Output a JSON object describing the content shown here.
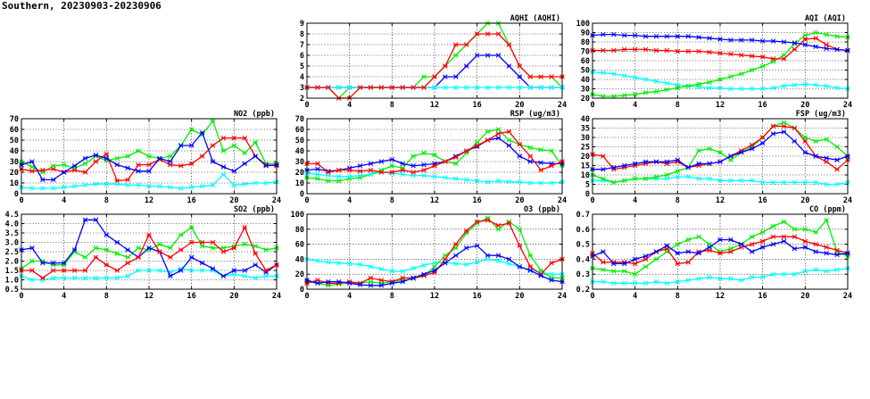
{
  "title": "Southern, 20230903-20230906",
  "colors": {
    "red": "#ff0000",
    "green": "#00ee00",
    "blue": "#0000ff",
    "cyan": "#00ffff"
  },
  "chart_data": [
    {
      "id": "aqhi",
      "type": "line",
      "title": "AQHI (AQHI)",
      "xlim": [
        0,
        24
      ],
      "xticks": [
        0,
        4,
        8,
        12,
        16,
        20,
        24
      ],
      "ylim": [
        2,
        9
      ],
      "yticks": [
        2,
        3,
        4,
        5,
        6,
        7,
        8,
        9
      ],
      "grid": true,
      "series": [
        {
          "color": "green",
          "values": [
            3,
            3,
            3,
            2,
            3,
            3,
            3,
            3,
            3,
            3,
            3,
            4,
            4,
            5,
            6,
            7,
            8,
            9,
            9,
            7,
            5,
            4,
            4,
            4,
            3
          ]
        },
        {
          "color": "blue",
          "values": [
            3,
            3,
            3,
            3,
            3,
            3,
            3,
            3,
            3,
            3,
            3,
            3,
            3,
            4,
            4,
            5,
            6,
            6,
            6,
            5,
            4,
            3,
            3,
            3,
            3
          ]
        },
        {
          "color": "cyan",
          "values": [
            3,
            3,
            3,
            3,
            3,
            3,
            3,
            3,
            3,
            3,
            3,
            3,
            3,
            3,
            3,
            3,
            3,
            3,
            3,
            3,
            3,
            3,
            3,
            3,
            3
          ]
        },
        {
          "color": "red",
          "values": [
            3,
            3,
            3,
            2,
            2,
            3,
            3,
            3,
            3,
            3,
            3,
            3,
            4,
            5,
            7,
            7,
            8,
            8,
            8,
            7,
            5,
            4,
            4,
            4,
            4
          ]
        }
      ]
    },
    {
      "id": "aqi",
      "type": "line",
      "title": "AQI (AQI)",
      "xlim": [
        0,
        24
      ],
      "xticks": [
        0,
        4,
        8,
        12,
        16,
        20,
        24
      ],
      "ylim": [
        20,
        100
      ],
      "yticks": [
        20,
        30,
        40,
        50,
        60,
        70,
        80,
        90,
        100
      ],
      "grid": true,
      "series": [
        {
          "color": "cyan",
          "values": [
            48,
            47,
            46,
            44,
            42,
            40,
            38,
            36,
            34,
            33,
            32,
            31,
            31,
            30,
            30,
            30,
            30,
            31,
            33,
            34,
            35,
            34,
            33,
            31,
            30
          ]
        },
        {
          "color": "green",
          "values": [
            24,
            22,
            22,
            23,
            24,
            26,
            27,
            29,
            31,
            33,
            35,
            37,
            40,
            43,
            46,
            50,
            54,
            59,
            66,
            78,
            87,
            90,
            88,
            86,
            85
          ]
        },
        {
          "color": "red",
          "values": [
            71,
            71,
            71,
            72,
            72,
            72,
            71,
            71,
            70,
            70,
            70,
            69,
            68,
            67,
            66,
            65,
            64,
            62,
            62,
            72,
            83,
            84,
            77,
            72,
            71
          ]
        },
        {
          "color": "blue",
          "values": [
            87,
            88,
            88,
            87,
            87,
            86,
            86,
            86,
            86,
            86,
            85,
            84,
            83,
            82,
            82,
            82,
            81,
            81,
            80,
            79,
            77,
            75,
            73,
            72,
            71
          ]
        }
      ]
    },
    {
      "id": "no2",
      "type": "line",
      "title": "NO2 (ppb)",
      "xlim": [
        0,
        24
      ],
      "xticks": [
        0,
        4,
        8,
        12,
        16,
        20,
        24
      ],
      "ylim": [
        0,
        70
      ],
      "yticks": [
        0,
        10,
        20,
        30,
        40,
        50,
        60,
        70
      ],
      "grid": true,
      "series": [
        {
          "color": "green",
          "values": [
            30,
            25,
            20,
            26,
            27,
            24,
            28,
            35,
            31,
            33,
            35,
            40,
            35,
            33,
            35,
            45,
            60,
            55,
            68,
            40,
            45,
            38,
            48,
            28,
            28
          ]
        },
        {
          "color": "red",
          "values": [
            23,
            21,
            22,
            23,
            20,
            22,
            20,
            30,
            37,
            12,
            13,
            27,
            27,
            32,
            27,
            26,
            28,
            35,
            45,
            52,
            52,
            52,
            35,
            27,
            26
          ]
        },
        {
          "color": "blue",
          "values": [
            27,
            30,
            13,
            13,
            20,
            26,
            33,
            36,
            33,
            27,
            24,
            21,
            21,
            33,
            30,
            45,
            45,
            57,
            30,
            25,
            21,
            28,
            35,
            26,
            27
          ]
        },
        {
          "color": "cyan",
          "values": [
            6,
            5,
            5,
            5,
            6,
            7,
            8,
            9,
            9,
            9,
            8,
            8,
            7,
            7,
            6,
            5,
            6,
            7,
            8,
            18,
            8,
            9,
            10,
            10,
            11
          ]
        }
      ]
    },
    {
      "id": "rsp",
      "type": "line",
      "title": "RSP (ug/m3)",
      "xlim": [
        0,
        24
      ],
      "xticks": [
        0,
        4,
        8,
        12,
        16,
        20,
        24
      ],
      "ylim": [
        0,
        70
      ],
      "yticks": [
        0,
        10,
        20,
        30,
        40,
        50,
        60,
        70
      ],
      "grid": true,
      "series": [
        {
          "color": "green",
          "values": [
            15,
            14,
            12,
            12,
            14,
            15,
            18,
            22,
            26,
            24,
            35,
            38,
            36,
            30,
            28,
            38,
            48,
            58,
            60,
            50,
            46,
            43,
            41,
            40,
            26
          ]
        },
        {
          "color": "blue",
          "values": [
            22,
            23,
            21,
            22,
            24,
            26,
            28,
            30,
            32,
            28,
            26,
            27,
            28,
            30,
            35,
            40,
            44,
            50,
            52,
            45,
            35,
            30,
            29,
            28,
            28
          ]
        },
        {
          "color": "cyan",
          "values": [
            19,
            18,
            17,
            16,
            16,
            17,
            18,
            20,
            19,
            18,
            17,
            17,
            16,
            15,
            14,
            13,
            12,
            11,
            12,
            11,
            11,
            10,
            10,
            10,
            11
          ]
        },
        {
          "color": "red",
          "values": [
            28,
            28,
            20,
            22,
            22,
            21,
            22,
            20,
            20,
            22,
            20,
            22,
            26,
            30,
            34,
            40,
            45,
            50,
            56,
            58,
            46,
            35,
            22,
            26,
            30
          ]
        }
      ]
    },
    {
      "id": "fsp",
      "type": "line",
      "title": "FSP (ug/m3)",
      "xlim": [
        0,
        24
      ],
      "xticks": [
        0,
        4,
        8,
        12,
        16,
        20,
        24
      ],
      "ylim": [
        0,
        40
      ],
      "yticks": [
        0,
        5,
        10,
        15,
        20,
        25,
        30,
        35,
        40
      ],
      "grid": true,
      "series": [
        {
          "color": "cyan",
          "values": [
            7,
            7,
            6,
            7,
            8,
            8,
            8,
            8,
            9,
            9,
            8,
            8,
            7,
            7,
            7,
            7,
            6,
            6,
            6,
            6,
            6,
            6,
            5,
            5,
            6
          ]
        },
        {
          "color": "green",
          "values": [
            10,
            8,
            6,
            7,
            8,
            8,
            9,
            10,
            12,
            14,
            23,
            24,
            22,
            18,
            22,
            25,
            30,
            36,
            38,
            35,
            30,
            28,
            29,
            25,
            20
          ]
        },
        {
          "color": "red",
          "values": [
            21,
            20,
            13,
            14,
            15,
            16,
            17,
            16,
            17,
            14,
            15,
            16,
            17,
            20,
            23,
            26,
            30,
            36,
            36,
            35,
            28,
            20,
            17,
            13,
            18
          ]
        },
        {
          "color": "blue",
          "values": [
            13,
            13,
            14,
            15,
            16,
            17,
            17,
            17,
            18,
            14,
            16,
            16,
            17,
            20,
            22,
            24,
            27,
            32,
            33,
            28,
            22,
            20,
            19,
            18,
            20
          ]
        }
      ]
    },
    {
      "id": "so2",
      "type": "line",
      "title": "SO2 (ppb)",
      "xlim": [
        0,
        24
      ],
      "xticks": [
        0,
        4,
        8,
        12,
        16,
        20,
        24
      ],
      "ylim": [
        0.5,
        4.5
      ],
      "yticks": [
        0.5,
        1.0,
        1.5,
        2.0,
        2.5,
        3.0,
        3.5,
        4.0,
        4.5
      ],
      "grid": true,
      "series": [
        {
          "color": "cyan",
          "values": [
            1.2,
            1.0,
            1.0,
            1.1,
            1.1,
            1.1,
            1.1,
            1.1,
            1.1,
            1.1,
            1.2,
            1.5,
            1.5,
            1.5,
            1.4,
            1.6,
            1.5,
            1.5,
            1.5,
            1.2,
            1.3,
            1.2,
            1.1,
            1.2,
            1.2
          ]
        },
        {
          "color": "green",
          "values": [
            1.6,
            2.0,
            2.0,
            1.8,
            1.8,
            2.5,
            2.2,
            2.7,
            2.6,
            2.4,
            2.2,
            2.7,
            2.6,
            2.9,
            2.7,
            3.4,
            3.8,
            2.8,
            2.7,
            2.7,
            2.8,
            2.9,
            2.8,
            2.6,
            2.7
          ]
        },
        {
          "color": "blue",
          "values": [
            2.6,
            2.7,
            1.9,
            1.9,
            1.9,
            2.6,
            4.2,
            4.2,
            3.4,
            3.0,
            2.6,
            2.2,
            2.7,
            2.5,
            1.2,
            1.5,
            2.2,
            1.9,
            1.6,
            1.2,
            1.5,
            1.5,
            1.8,
            1.4,
            1.8
          ]
        },
        {
          "color": "red",
          "values": [
            1.5,
            1.5,
            1.1,
            1.5,
            1.5,
            1.5,
            1.5,
            2.2,
            1.8,
            1.5,
            1.9,
            2.2,
            3.4,
            2.5,
            2.2,
            2.6,
            3.0,
            3.0,
            3.0,
            2.5,
            2.7,
            3.8,
            2.4,
            1.5,
            1.8
          ]
        }
      ]
    },
    {
      "id": "o3",
      "type": "line",
      "title": "O3 (ppb)",
      "xlim": [
        0,
        24
      ],
      "xticks": [
        0,
        4,
        8,
        12,
        16,
        20,
        24
      ],
      "ylim": [
        0,
        100
      ],
      "yticks": [
        0,
        20,
        40,
        60,
        80,
        100
      ],
      "grid": true,
      "series": [
        {
          "color": "cyan",
          "values": [
            40,
            38,
            36,
            35,
            34,
            33,
            30,
            27,
            24,
            24,
            28,
            32,
            35,
            36,
            34,
            33,
            36,
            40,
            38,
            34,
            30,
            26,
            22,
            20,
            20
          ]
        },
        {
          "color": "green",
          "values": [
            10,
            8,
            5,
            7,
            8,
            8,
            10,
            8,
            10,
            12,
            14,
            18,
            30,
            45,
            55,
            75,
            88,
            95,
            80,
            90,
            80,
            45,
            25,
            15,
            15
          ]
        },
        {
          "color": "red",
          "values": [
            8,
            12,
            8,
            8,
            10,
            8,
            15,
            12,
            10,
            15,
            15,
            18,
            22,
            40,
            60,
            78,
            90,
            92,
            85,
            88,
            58,
            30,
            20,
            35,
            40
          ]
        },
        {
          "color": "blue",
          "values": [
            12,
            8,
            10,
            10,
            8,
            6,
            5,
            5,
            8,
            10,
            15,
            20,
            25,
            35,
            45,
            55,
            58,
            45,
            45,
            40,
            30,
            25,
            18,
            12,
            10
          ]
        }
      ]
    },
    {
      "id": "co",
      "type": "line",
      "title": "CO (ppm)",
      "xlim": [
        0,
        24
      ],
      "xticks": [
        0,
        4,
        8,
        12,
        16,
        20,
        24
      ],
      "ylim": [
        0.2,
        0.7
      ],
      "yticks": [
        0.2,
        0.3,
        0.4,
        0.5,
        0.6,
        0.7
      ],
      "grid": true,
      "series": [
        {
          "color": "cyan",
          "values": [
            0.25,
            0.25,
            0.24,
            0.24,
            0.24,
            0.24,
            0.25,
            0.24,
            0.25,
            0.26,
            0.27,
            0.28,
            0.27,
            0.27,
            0.26,
            0.28,
            0.28,
            0.3,
            0.3,
            0.3,
            0.32,
            0.33,
            0.32,
            0.33,
            0.34
          ]
        },
        {
          "color": "green",
          "values": [
            0.34,
            0.33,
            0.32,
            0.32,
            0.3,
            0.35,
            0.4,
            0.45,
            0.5,
            0.53,
            0.55,
            0.5,
            0.45,
            0.47,
            0.5,
            0.55,
            0.58,
            0.62,
            0.65,
            0.6,
            0.6,
            0.58,
            0.66,
            0.45,
            0.42
          ]
        },
        {
          "color": "red",
          "values": [
            0.44,
            0.38,
            0.38,
            0.38,
            0.37,
            0.4,
            0.45,
            0.47,
            0.37,
            0.38,
            0.45,
            0.46,
            0.44,
            0.45,
            0.48,
            0.5,
            0.52,
            0.55,
            0.55,
            0.55,
            0.52,
            0.5,
            0.48,
            0.46,
            0.44
          ]
        },
        {
          "color": "blue",
          "values": [
            0.42,
            0.45,
            0.37,
            0.37,
            0.4,
            0.42,
            0.45,
            0.49,
            0.44,
            0.45,
            0.44,
            0.48,
            0.53,
            0.53,
            0.5,
            0.45,
            0.48,
            0.5,
            0.52,
            0.47,
            0.48,
            0.45,
            0.44,
            0.43,
            0.44
          ]
        }
      ]
    }
  ]
}
